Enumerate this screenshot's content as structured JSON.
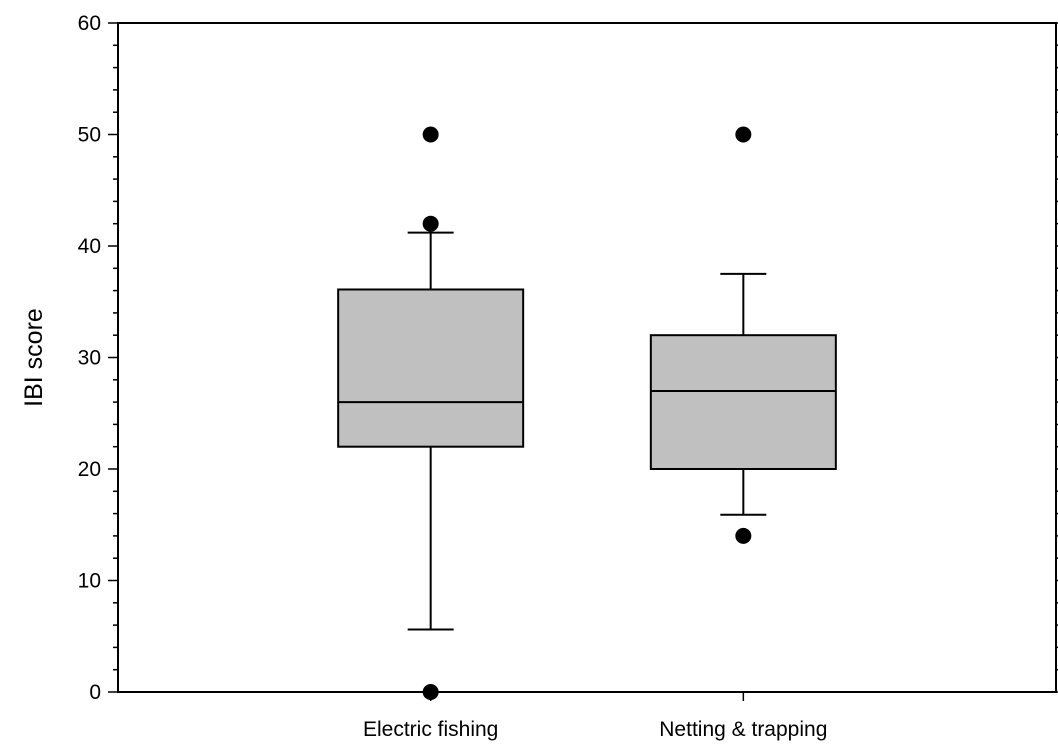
{
  "chart_data": {
    "type": "box",
    "title": "",
    "xlabel": "",
    "ylabel": "IBI score",
    "ylim": [
      0,
      60
    ],
    "yticks": [
      0,
      10,
      20,
      30,
      40,
      50,
      60
    ],
    "y_minor_step": 2,
    "grid": false,
    "categories": [
      "Electric fishing",
      "Netting & trapping"
    ],
    "boxes": [
      {
        "category": "Electric fishing",
        "whisker_low": 5.6,
        "q1": 22,
        "median": 26,
        "q3": 36.1,
        "whisker_high": 41.2,
        "outliers": [
          0,
          42,
          50
        ]
      },
      {
        "category": "Netting & trapping",
        "whisker_low": 15.9,
        "q1": 20,
        "median": 27,
        "q3": 32,
        "whisker_high": 37.5,
        "outliers": [
          14,
          50
        ]
      }
    ],
    "colors": {
      "box_fill": "#c0c0c0",
      "stroke": "#000000",
      "outlier": "#000000"
    }
  }
}
